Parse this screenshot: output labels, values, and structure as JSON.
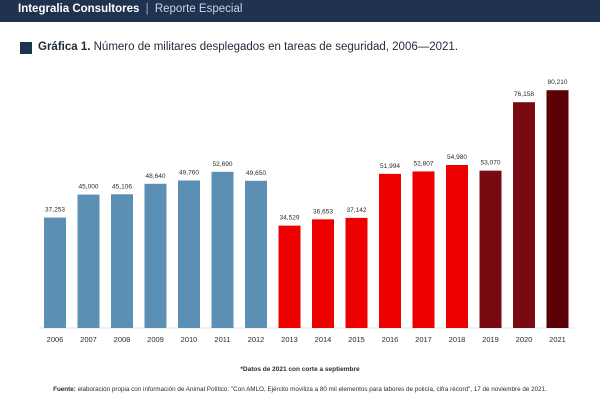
{
  "header": {
    "brand": "Integralia Consultores",
    "separator": "|",
    "section": "Reporte Especial"
  },
  "chart_data": {
    "type": "bar",
    "title_label": "Gráfica 1.",
    "title": "Número de militares desplegados en tareas de seguridad, 2006—2021.",
    "categories": [
      "2006",
      "2007",
      "2008",
      "2009",
      "2010",
      "2011",
      "2012",
      "2013",
      "2014",
      "2015",
      "2016",
      "2017",
      "2018",
      "2019",
      "2020",
      "2021"
    ],
    "values": [
      37253,
      45000,
      45106,
      48640,
      49760,
      52690,
      49650,
      34529,
      36653,
      37142,
      51994,
      52807,
      54980,
      53070,
      76158,
      80210
    ],
    "value_labels": [
      "37,253",
      "45,000",
      "45,106",
      "48,640",
      "49,760",
      "52,690",
      "49,650",
      "34,529",
      "36,653",
      "37,142",
      "51,994",
      "52,807",
      "54,980",
      "53,070",
      "76,158",
      "80,210"
    ],
    "bar_colors": [
      "#5b8fb3",
      "#5b8fb3",
      "#5b8fb3",
      "#5b8fb3",
      "#5b8fb3",
      "#5b8fb3",
      "#5b8fb3",
      "#ee0000",
      "#ee0000",
      "#ee0000",
      "#ee0000",
      "#ee0000",
      "#ee0000",
      "#7a0a12",
      "#7a0a12",
      "#5c0008"
    ],
    "ylim": [
      0,
      85000
    ],
    "xlabel": "",
    "ylabel": "",
    "grid": false,
    "legend": "none"
  },
  "note": "*Datos de 2021 con corte a septiembre",
  "source": {
    "label": "Fuente:",
    "text": "elaboración propia con información de Animal Político: \"Con AMLO, Ejército moviliza a 80 mil elementos para labores de policía, cifra récord\", 17 de noviembre de 2021."
  }
}
